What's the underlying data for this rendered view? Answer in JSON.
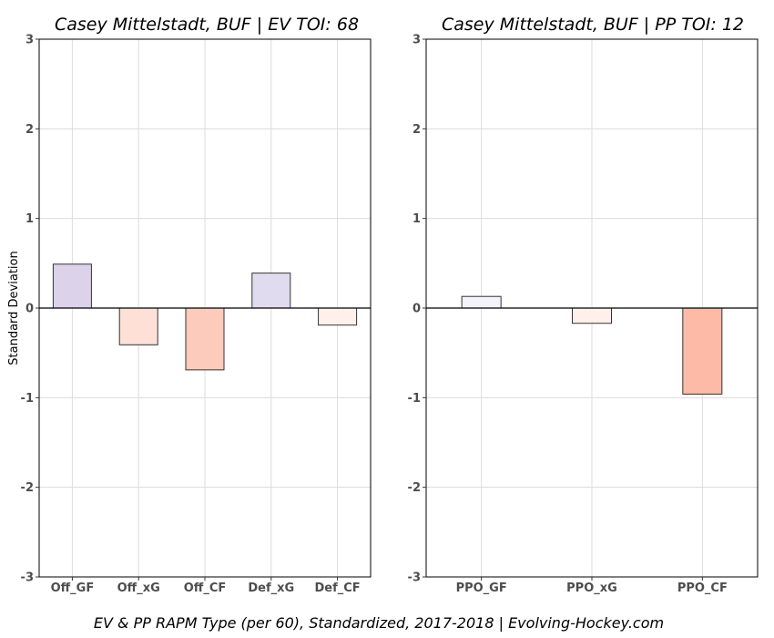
{
  "chart_data": [
    {
      "type": "bar",
      "title": "Casey Mittelstadt, BUF  |  EV TOI: 68",
      "xlabel": "",
      "ylabel": "Standard Deviation",
      "categories": [
        "Off_GF",
        "Off_xG",
        "Off_CF",
        "Def_xG",
        "Def_CF"
      ],
      "values": [
        0.49,
        -0.41,
        -0.69,
        0.39,
        -0.19
      ],
      "colors": [
        "#dcd2ea",
        "#fee0d6",
        "#fdcbbb",
        "#e1dbf0",
        "#fff0ec"
      ],
      "ylim": [
        -3,
        3
      ],
      "yticks": [
        -3,
        -2,
        -1,
        0,
        1,
        2,
        3
      ],
      "grid": true
    },
    {
      "type": "bar",
      "title": "Casey Mittelstadt, BUF  |  PP TOI: 12",
      "xlabel": "",
      "ylabel": "",
      "categories": [
        "PPO_GF",
        "PPO_xG",
        "PPO_CF"
      ],
      "values": [
        0.13,
        -0.17,
        -0.96
      ],
      "colors": [
        "#f4f2fa",
        "#fff0ec",
        "#fdbba7"
      ],
      "ylim": [
        -3,
        3
      ],
      "yticks": [
        -3,
        -2,
        -1,
        0,
        1,
        2,
        3
      ],
      "grid": true
    }
  ],
  "caption": "EV & PP RAPM Type (per 60), Standardized, 2017-2018    |    Evolving-Hockey.com"
}
